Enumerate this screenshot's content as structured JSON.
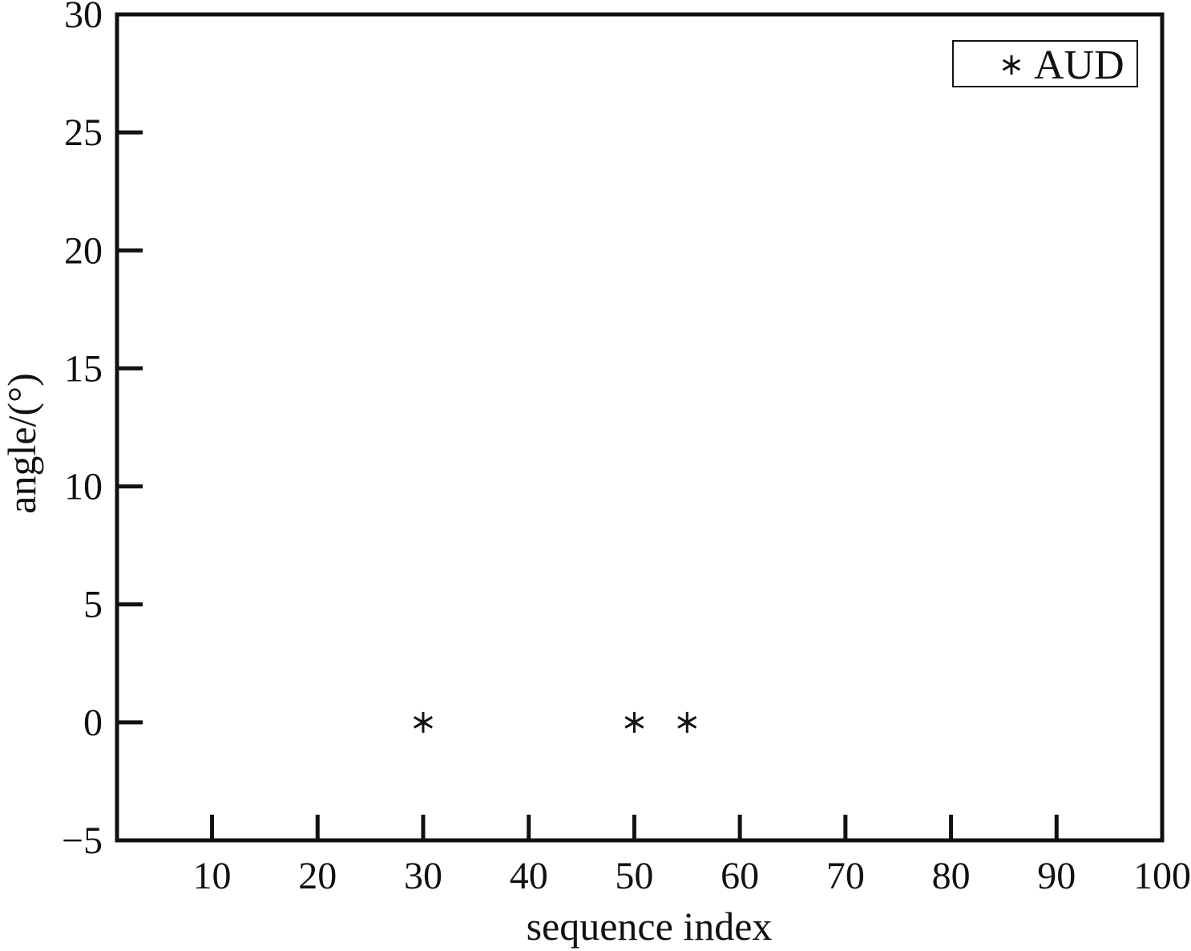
{
  "chart_data": {
    "type": "scatter",
    "title": "",
    "xlabel": "sequence index",
    "ylabel": "angle/(°)",
    "xlim": [
      1,
      100
    ],
    "ylim": [
      -5,
      30
    ],
    "xticks": [
      10,
      20,
      30,
      40,
      50,
      60,
      70,
      80,
      90,
      100
    ],
    "yticks": [
      -5,
      0,
      5,
      10,
      15,
      20,
      25,
      30
    ],
    "xtick_labels": [
      "10",
      "20",
      "30",
      "40",
      "50",
      "60",
      "70",
      "80",
      "90",
      "100"
    ],
    "ytick_labels": [
      "−5",
      "0",
      "5",
      "10",
      "15",
      "20",
      "25",
      "30"
    ],
    "grid": false,
    "legend_position": "top-right",
    "series": [
      {
        "name": "AUD",
        "marker": "asterisk",
        "color": "#111111",
        "x": [
          30,
          50,
          55
        ],
        "y": [
          0,
          0,
          0
        ]
      }
    ]
  }
}
